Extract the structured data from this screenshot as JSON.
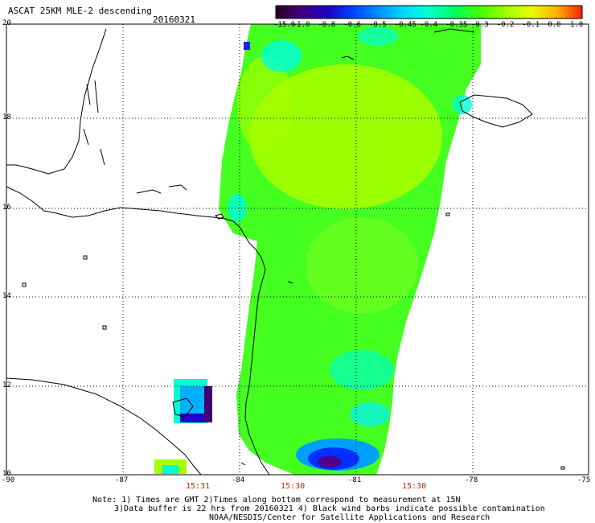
{
  "header": {
    "title": "ASCAT 25KM MLE-2 descending",
    "date": "20160321"
  },
  "colorbar": {
    "labels": [
      "-15.0",
      "-1.0",
      "-0.8",
      "-0.6",
      "-0.5",
      "-0.45",
      "-0.4",
      "-0.35",
      "-0.3",
      "-0.2",
      "-0.1",
      "0.0",
      "1.0"
    ],
    "colors": [
      "#2a0020",
      "#400080",
      "#2000c0",
      "#0040ff",
      "#0090ff",
      "#00d8ff",
      "#00ffd0",
      "#00ff60",
      "#40ff00",
      "#a0ff00",
      "#e8ff00",
      "#ffb000",
      "#ff2000"
    ]
  },
  "axes": {
    "lat_labels": [
      "20",
      "18",
      "16",
      "14",
      "12",
      "10"
    ],
    "lon_labels": [
      "-90",
      "-87",
      "-84",
      "-81",
      "-78",
      "-75"
    ]
  },
  "times": [
    "15:31",
    "15:30",
    "15:30"
  ],
  "notes": [
    "Note: 1) Times are GMT 2)Times along bottom correspond to measurement at 15N",
    "3)Data buffer is 22 hrs from 20160321 4) Black wind barbs indicate possible contamination",
    "NOAA/NESDIS/Center for Satellite Applications and Research"
  ]
}
